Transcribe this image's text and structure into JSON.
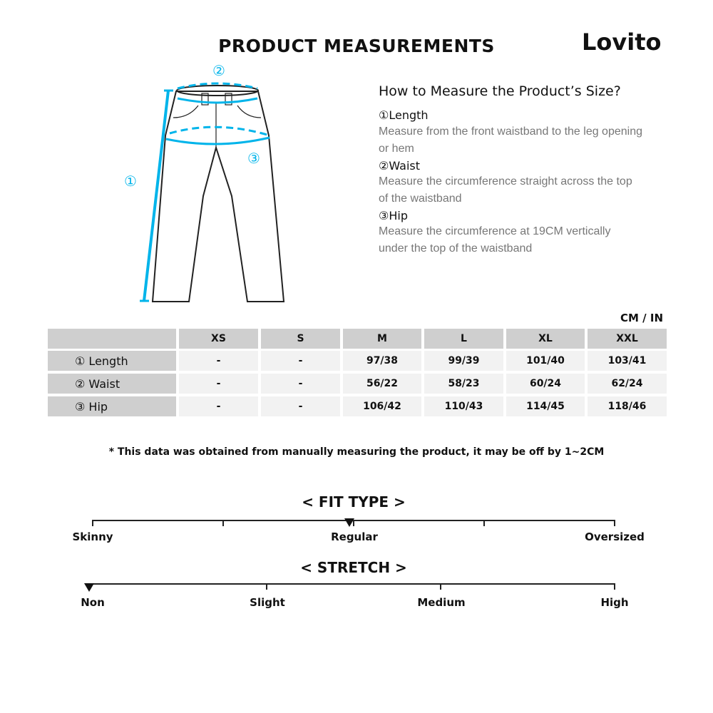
{
  "title": "PRODUCT MEASUREMENTS",
  "brand": "Lovito",
  "accent_color": "#00b4ea",
  "diagram": {
    "markers": [
      "①",
      "②",
      "③"
    ]
  },
  "guide": {
    "heading": "How to Measure the Product’s Size?",
    "items": [
      {
        "label": "①Length",
        "desc": "Measure from the front waistband to the leg opening or hem"
      },
      {
        "label": "②Waist",
        "desc": "Measure the circumference straight across the top of the waistband"
      },
      {
        "label": "③Hip",
        "desc": "Measure the circumference at 19CM vertically under the top of the waistband"
      }
    ]
  },
  "table": {
    "unit": "CM / IN",
    "sizes": [
      "XS",
      "S",
      "M",
      "L",
      "XL",
      "XXL"
    ],
    "rows": [
      {
        "label": "① Length",
        "values": [
          "-",
          "-",
          "97/38",
          "99/39",
          "101/40",
          "103/41"
        ]
      },
      {
        "label": "② Waist",
        "values": [
          "-",
          "-",
          "56/22",
          "58/23",
          "60/24",
          "62/24"
        ]
      },
      {
        "label": "③ Hip",
        "values": [
          "-",
          "-",
          "106/42",
          "110/43",
          "114/45",
          "118/46"
        ]
      }
    ]
  },
  "note": "* This data was obtained from manually measuring the product, it may be off by 1~2CM",
  "fit_type": {
    "title": "< FIT TYPE >",
    "labels": [
      "Skinny",
      "Regular",
      "Oversized"
    ],
    "selected": "Regular"
  },
  "stretch": {
    "title": "< STRETCH >",
    "labels": [
      "Non",
      "Slight",
      "Medium",
      "High"
    ],
    "selected": "Non"
  }
}
